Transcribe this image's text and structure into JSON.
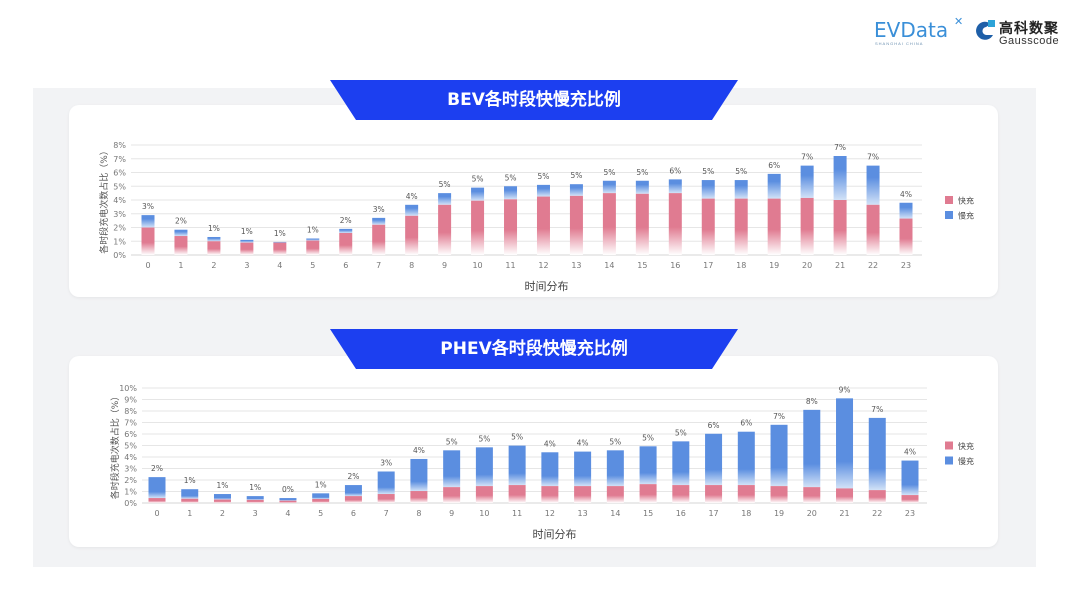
{
  "logos": {
    "evdata": {
      "text": "EVData",
      "subtitle": "SHANGHAI CHINA"
    },
    "gausscode": {
      "cn": "高科数聚",
      "en": "Gausscode"
    }
  },
  "colors": {
    "fast": "#e07b91",
    "slow": "#5b8ee0",
    "banner": "#1c3ff0"
  },
  "chart_data": [
    {
      "type": "bar",
      "stacked": true,
      "title": "BEV各时段快慢充比例",
      "xlabel": "时间分布",
      "ylabel": "各时段充电次数占比（%）",
      "ylim": [
        0,
        8
      ],
      "yticks": [
        "0%",
        "1%",
        "2%",
        "3%",
        "4%",
        "5%",
        "6%",
        "7%",
        "8%"
      ],
      "grid": true,
      "legend_position": "right",
      "categories": [
        "0",
        "1",
        "2",
        "3",
        "4",
        "5",
        "6",
        "7",
        "8",
        "9",
        "10",
        "11",
        "12",
        "13",
        "14",
        "15",
        "16",
        "17",
        "18",
        "19",
        "20",
        "21",
        "22",
        "23"
      ],
      "series": [
        {
          "name": "快充",
          "values": [
            2.0,
            1.38,
            1.0,
            0.9,
            0.9,
            1.05,
            1.6,
            2.2,
            2.85,
            3.65,
            3.95,
            4.05,
            4.25,
            4.3,
            4.5,
            4.45,
            4.5,
            4.1,
            4.1,
            4.1,
            4.15,
            4.0,
            3.65,
            2.65
          ]
        },
        {
          "name": "慢充",
          "values": [
            0.9,
            0.46,
            0.31,
            0.2,
            0.05,
            0.15,
            0.3,
            0.5,
            0.8,
            0.85,
            0.95,
            0.95,
            0.85,
            0.85,
            0.9,
            0.95,
            1.0,
            1.35,
            1.35,
            1.8,
            2.35,
            3.2,
            2.85,
            1.15
          ]
        }
      ],
      "data_labels": [
        "3%",
        "2%",
        "1%",
        "1%",
        "1%",
        "1%",
        "2%",
        "3%",
        "4%",
        "5%",
        "5%",
        "5%",
        "5%",
        "5%",
        "5%",
        "5%",
        "6%",
        "5%",
        "5%",
        "6%",
        "7%",
        "7%",
        "7%",
        "4%"
      ]
    },
    {
      "type": "bar",
      "stacked": true,
      "title": "PHEV各时段快慢充比例",
      "xlabel": "时间分布",
      "ylabel": "各时段充电次数占比（%）",
      "ylim": [
        0,
        10
      ],
      "yticks": [
        "0%",
        "1%",
        "2%",
        "3%",
        "4%",
        "5%",
        "6%",
        "7%",
        "8%",
        "9%",
        "10%"
      ],
      "grid": true,
      "legend_position": "right",
      "categories": [
        "0",
        "1",
        "2",
        "3",
        "4",
        "5",
        "6",
        "7",
        "8",
        "9",
        "10",
        "11",
        "12",
        "13",
        "14",
        "15",
        "16",
        "17",
        "18",
        "19",
        "20",
        "21",
        "22",
        "23"
      ],
      "series": [
        {
          "name": "快充",
          "values": [
            0.43,
            0.37,
            0.3,
            0.27,
            0.2,
            0.35,
            0.6,
            0.78,
            1.04,
            1.38,
            1.47,
            1.56,
            1.47,
            1.47,
            1.47,
            1.64,
            1.56,
            1.56,
            1.56,
            1.47,
            1.38,
            1.27,
            1.12,
            0.69
          ]
        },
        {
          "name": "慢充",
          "values": [
            1.82,
            0.83,
            0.48,
            0.33,
            0.23,
            0.49,
            0.96,
            1.96,
            2.79,
            3.2,
            3.37,
            3.43,
            2.94,
            3.0,
            3.11,
            3.29,
            3.8,
            4.46,
            4.64,
            5.33,
            6.72,
            7.83,
            6.28,
            3.0
          ]
        }
      ],
      "data_labels": [
        "2%",
        "1%",
        "1%",
        "1%",
        "0%",
        "1%",
        "2%",
        "3%",
        "4%",
        "5%",
        "5%",
        "5%",
        "4%",
        "4%",
        "5%",
        "5%",
        "5%",
        "6%",
        "6%",
        "7%",
        "8%",
        "9%",
        "7%",
        "4%"
      ]
    }
  ]
}
